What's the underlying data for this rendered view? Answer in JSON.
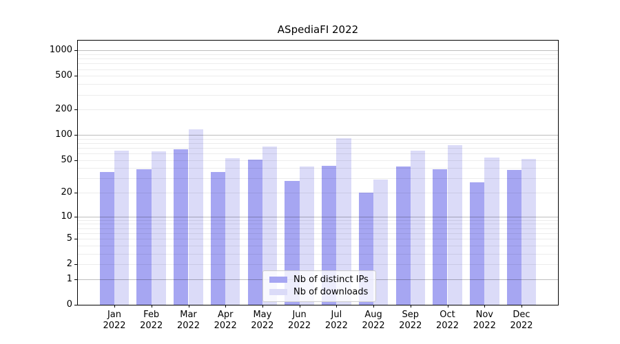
{
  "chart_data": {
    "type": "bar",
    "title": "ASpediaFI 2022",
    "categories": [
      "Jan",
      "Feb",
      "Mar",
      "Apr",
      "May",
      "Jun",
      "Jul",
      "Aug",
      "Sep",
      "Oct",
      "Nov",
      "Dec"
    ],
    "category_year": "2022",
    "series": [
      {
        "name": "Nb of distinct IPs",
        "color": "#a6a6f2",
        "values": [
          36,
          39,
          67,
          36,
          51,
          28,
          43,
          20,
          42,
          39,
          27,
          38
        ]
      },
      {
        "name": "Nb of downloads",
        "color": "#dbdbf8",
        "values": [
          65,
          63,
          117,
          53,
          72,
          42,
          91,
          29,
          65,
          75,
          54,
          52
        ]
      }
    ],
    "xlabel": "",
    "ylabel": "",
    "yscale": "log1p",
    "yticks": [
      0,
      1,
      2,
      5,
      10,
      20,
      50,
      100,
      200,
      500,
      1000
    ],
    "ylim": [
      0,
      1306
    ],
    "grid": "horizontal, minor+major, drawn over bars",
    "legend_position": "lower center",
    "colors": {
      "major_gridline": "#bdbdbd",
      "minor_gridline": "#ebebeb",
      "spine": "#000000"
    }
  }
}
